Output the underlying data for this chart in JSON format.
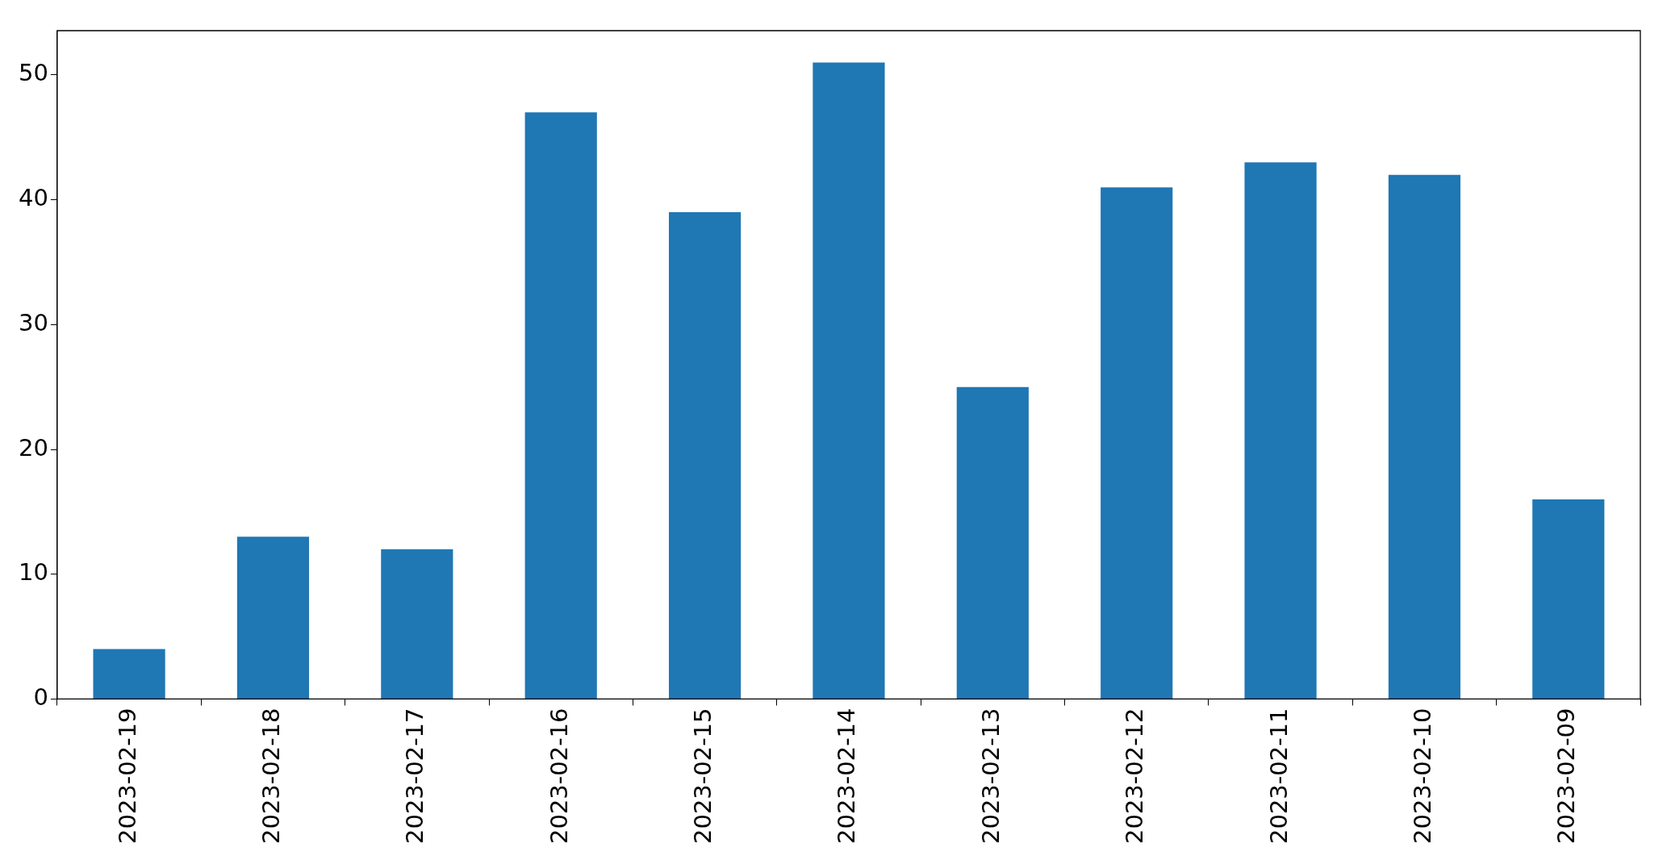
{
  "chart_data": {
    "type": "bar",
    "categories": [
      "2023-02-19",
      "2023-02-18",
      "2023-02-17",
      "2023-02-16",
      "2023-02-15",
      "2023-02-14",
      "2023-02-13",
      "2023-02-12",
      "2023-02-11",
      "2023-02-10",
      "2023-02-09"
    ],
    "values": [
      4,
      13,
      12,
      47,
      39,
      51,
      25,
      41,
      43,
      42,
      16
    ],
    "color": "#1f77b4",
    "ylim": [
      0,
      53.55
    ],
    "yticks": [
      0,
      10,
      20,
      30,
      40,
      50
    ],
    "grid": false
  }
}
